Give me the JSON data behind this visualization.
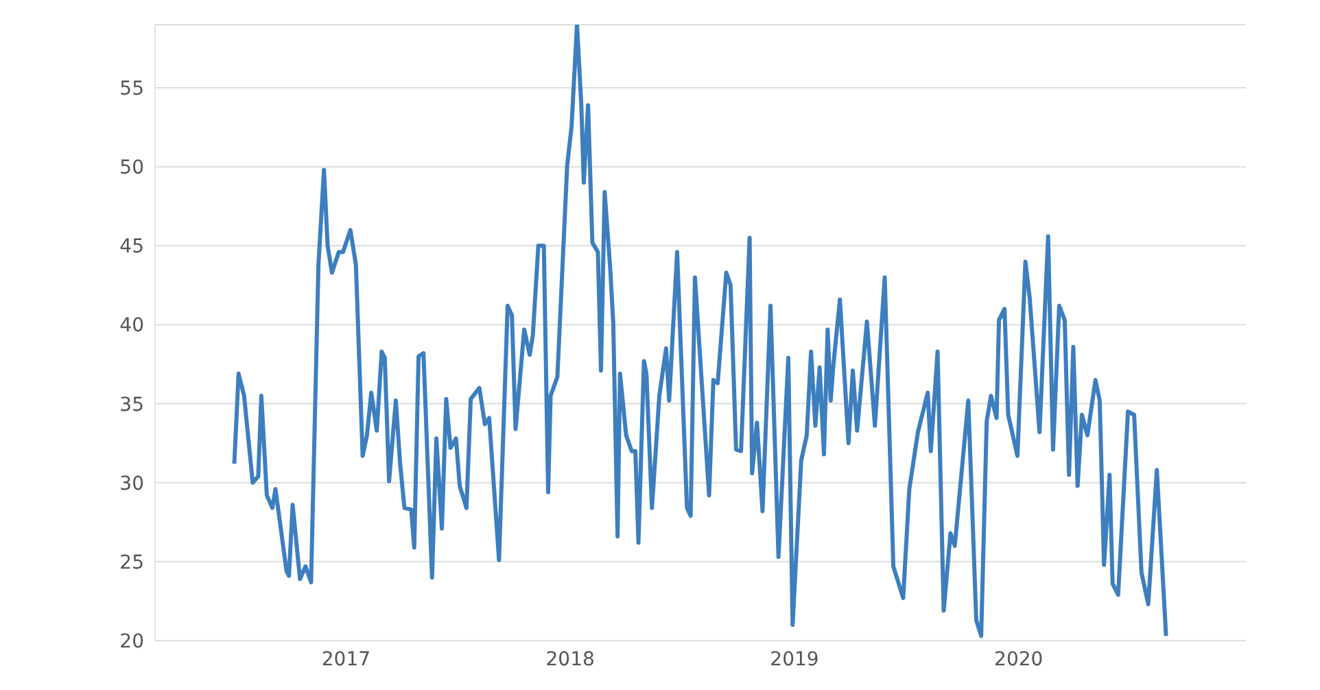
{
  "chart_data": {
    "type": "line",
    "series": [
      {
        "color": "#3d7ebf",
        "x": [
          "2016-07-03",
          "2016-07-10",
          "2016-07-19",
          "2016-08-02",
          "2016-08-11",
          "2016-08-16",
          "2016-08-25",
          "2016-09-03",
          "2016-09-08",
          "2016-09-14",
          "2016-09-26",
          "2016-09-30",
          "2016-10-06",
          "2016-10-18",
          "2016-10-27",
          "2016-11-05",
          "2016-11-17",
          "2016-11-26",
          "2016-12-02",
          "2016-12-09",
          "2016-12-20",
          "2016-12-27",
          "2017-01-08",
          "2017-01-17",
          "2017-01-28",
          "2017-02-04",
          "2017-02-11",
          "2017-02-20",
          "2017-02-28",
          "2017-03-05",
          "2017-03-12",
          "2017-03-23",
          "2017-03-30",
          "2017-04-06",
          "2017-04-17",
          "2017-04-22",
          "2017-04-29",
          "2017-05-07",
          "2017-05-21",
          "2017-05-28",
          "2017-06-06",
          "2017-06-13",
          "2017-06-20",
          "2017-06-29",
          "2017-07-05",
          "2017-07-16",
          "2017-07-23",
          "2017-08-06",
          "2017-08-15",
          "2017-08-22",
          "2017-09-07",
          "2017-09-21",
          "2017-09-28",
          "2017-10-04",
          "2017-10-18",
          "2017-10-27",
          "2017-11-01",
          "2017-11-10",
          "2017-11-19",
          "2017-11-26",
          "2017-11-30",
          "2017-12-11",
          "2017-12-27",
          "2018-01-03",
          "2018-01-12",
          "2018-01-19",
          "2018-01-23",
          "2018-01-30",
          "2018-02-06",
          "2018-02-15",
          "2018-02-20",
          "2018-02-26",
          "2018-03-07",
          "2018-03-12",
          "2018-03-19",
          "2018-03-23",
          "2018-04-02",
          "2018-04-11",
          "2018-04-17",
          "2018-04-22",
          "2018-05-01",
          "2018-05-05",
          "2018-05-14",
          "2018-05-26",
          "2018-06-06",
          "2018-06-11",
          "2018-06-24",
          "2018-07-10",
          "2018-07-16",
          "2018-07-23",
          "2018-08-15",
          "2018-08-22",
          "2018-08-29",
          "2018-09-12",
          "2018-09-19",
          "2018-09-28",
          "2018-10-06",
          "2018-10-20",
          "2018-10-24",
          "2018-11-01",
          "2018-11-10",
          "2018-11-23",
          "2018-12-06",
          "2018-12-22",
          "2018-12-29",
          "2019-01-12",
          "2019-01-21",
          "2019-01-28",
          "2019-02-04",
          "2019-02-11",
          "2019-02-18",
          "2019-02-24",
          "2019-03-01",
          "2019-03-05",
          "2019-03-16",
          "2019-03-30",
          "2019-04-06",
          "2019-04-13",
          "2019-04-29",
          "2019-05-12",
          "2019-05-28",
          "2019-06-11",
          "2019-06-27",
          "2019-07-07",
          "2019-07-21",
          "2019-08-06",
          "2019-08-11",
          "2019-08-22",
          "2019-09-01",
          "2019-09-12",
          "2019-09-19",
          "2019-10-11",
          "2019-10-24",
          "2019-11-01",
          "2019-11-10",
          "2019-11-17",
          "2019-11-26",
          "2019-11-30",
          "2019-12-09",
          "2019-12-15",
          "2019-12-30",
          "2020-01-12",
          "2020-01-19",
          "2020-02-04",
          "2020-02-18",
          "2020-02-26",
          "2020-03-07",
          "2020-03-16",
          "2020-03-23",
          "2020-03-30",
          "2020-04-06",
          "2020-04-13",
          "2020-04-22",
          "2020-05-05",
          "2020-05-12",
          "2020-05-19",
          "2020-05-28",
          "2020-06-02",
          "2020-06-11",
          "2020-06-27",
          "2020-07-07",
          "2020-07-19",
          "2020-07-30",
          "2020-08-13",
          "2020-08-28"
        ],
        "values": [
          31.2,
          36.9,
          35.5,
          30.0,
          30.4,
          35.5,
          29.2,
          28.4,
          29.6,
          27.9,
          24.4,
          24.1,
          28.6,
          23.9,
          24.7,
          23.7,
          43.8,
          49.8,
          45.0,
          43.3,
          44.6,
          44.6,
          46.0,
          43.8,
          31.7,
          33.0,
          35.7,
          33.3,
          38.3,
          37.9,
          30.1,
          35.2,
          31.2,
          28.4,
          28.3,
          25.9,
          38.0,
          38.2,
          24.0,
          32.8,
          27.1,
          35.3,
          32.2,
          32.8,
          29.8,
          28.4,
          35.3,
          36.0,
          33.7,
          34.1,
          25.1,
          41.2,
          40.6,
          33.4,
          39.7,
          38.1,
          39.3,
          45.0,
          45.0,
          29.4,
          35.5,
          36.7,
          50.1,
          52.5,
          59.0,
          53.9,
          49.0,
          53.9,
          45.2,
          44.6,
          37.1,
          48.4,
          43.6,
          40.1,
          26.6,
          36.9,
          33.0,
          32.0,
          32.0,
          26.2,
          37.7,
          36.9,
          28.4,
          35.5,
          38.5,
          35.2,
          44.6,
          28.4,
          27.9,
          43.0,
          29.2,
          36.5,
          36.3,
          43.3,
          42.5,
          32.1,
          32.0,
          45.5,
          30.6,
          33.8,
          28.2,
          41.2,
          25.3,
          37.9,
          21.0,
          31.4,
          33.0,
          38.3,
          33.6,
          37.3,
          31.8,
          39.7,
          35.2,
          37.3,
          41.6,
          32.5,
          37.1,
          33.3,
          40.2,
          33.6,
          43.0,
          24.7,
          22.7,
          29.6,
          33.2,
          35.7,
          32.0,
          38.3,
          21.9,
          26.8,
          26.0,
          35.2,
          21.3,
          20.3,
          33.9,
          35.5,
          34.1,
          40.3,
          41.0,
          34.3,
          31.7,
          44.0,
          41.7,
          33.2,
          45.6,
          32.1,
          41.2,
          40.3,
          30.5,
          38.6,
          29.8,
          34.3,
          33.0,
          36.5,
          35.2,
          24.8,
          30.5,
          23.6,
          22.9,
          34.5,
          34.3,
          24.3,
          22.3,
          30.8,
          20.3
        ]
      }
    ],
    "xlim": [
      "2016-02-25",
      "2021-01-05"
    ],
    "xticks": [
      {
        "value": "2017-01-01",
        "label": "2017"
      },
      {
        "value": "2018-01-01",
        "label": "2018"
      },
      {
        "value": "2019-01-01",
        "label": "2019"
      },
      {
        "value": "2020-01-01",
        "label": "2020"
      }
    ],
    "ylim": [
      20,
      59
    ],
    "yticks": [
      20,
      25,
      30,
      35,
      40,
      45,
      50,
      55
    ],
    "grid": "y",
    "marker": "none",
    "line_style": "solid",
    "legend": false
  }
}
